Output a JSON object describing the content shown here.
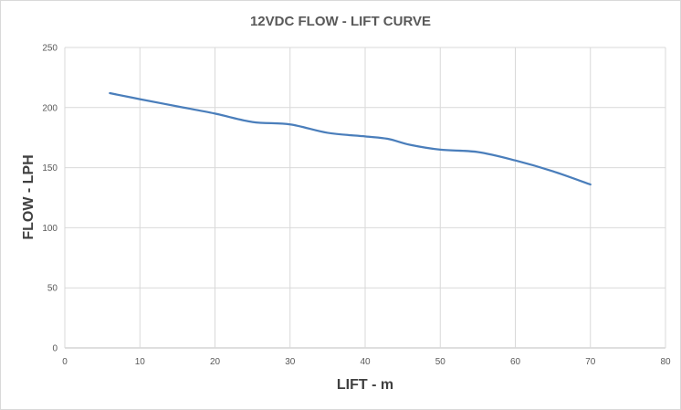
{
  "chart_data": {
    "type": "line",
    "title": "12VDC FLOW - LIFT CURVE",
    "xlabel": "LIFT - m",
    "ylabel": "FLOW - LPH",
    "xlim": [
      0,
      80
    ],
    "ylim": [
      0,
      250
    ],
    "x_ticks": [
      0,
      10,
      20,
      30,
      40,
      50,
      60,
      70,
      80
    ],
    "y_ticks": [
      0,
      50,
      100,
      150,
      200,
      250
    ],
    "grid": true,
    "legend": "none",
    "series_color": "#4a7ebb",
    "series": [
      {
        "x": [
          6,
          10,
          15,
          20,
          25,
          30,
          35,
          40,
          43,
          46,
          50,
          55,
          60,
          65,
          70
        ],
        "y": [
          212,
          207,
          201,
          195,
          188,
          186,
          179,
          176,
          174,
          169,
          165,
          163,
          156,
          147,
          136
        ]
      }
    ]
  }
}
